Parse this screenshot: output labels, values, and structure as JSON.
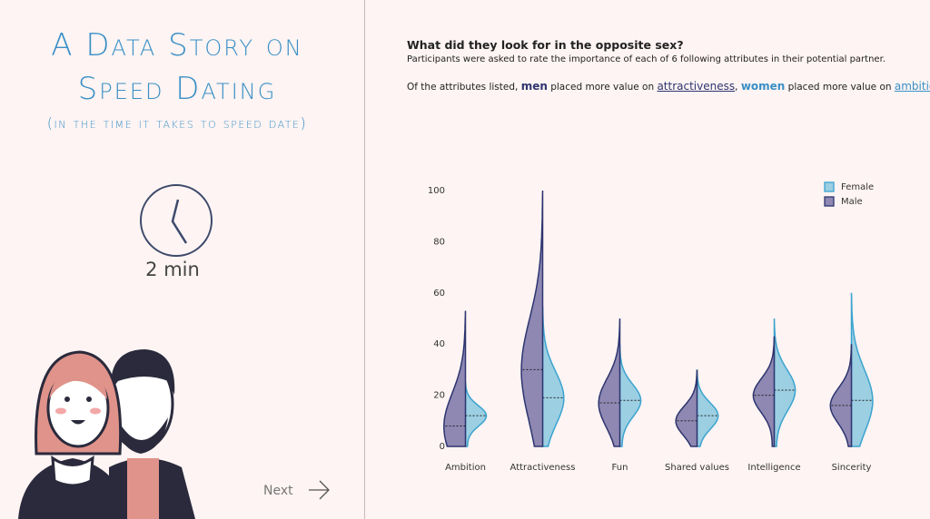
{
  "page": {
    "title_line1": "A Data Story on",
    "title_line2": "Speed Dating",
    "subtitle": "(in the time it takes to speed date)",
    "timer": "2 min",
    "next": "Next"
  },
  "chart_data": {
    "type": "violin",
    "title": "What did they look for in the opposite sex?",
    "subtitle": "Participants were asked to rate the importance of each of 6 following attributes in their potential partner.",
    "insight": [
      "Of the attributes listed, ",
      "men",
      " placed more value on ",
      "attractiveness",
      ", ",
      "women",
      " placed more value on ",
      "ambition",
      "."
    ],
    "categories": [
      "Ambition",
      "Attractiveness",
      "Fun",
      "Shared values",
      "Intelligence",
      "Sincerity"
    ],
    "series": [
      {
        "name": "Female",
        "color": "#9ccfe2",
        "edge": "#3ba3cf",
        "values": [
          12,
          19,
          18,
          12,
          22,
          18
        ],
        "max": [
          25,
          55,
          40,
          30,
          50,
          60
        ]
      },
      {
        "name": "Male",
        "color": "#8e88b2",
        "edge": "#2e3570",
        "values": [
          8,
          30,
          17,
          10,
          20,
          16
        ],
        "max": [
          53,
          100,
          50,
          30,
          43,
          40
        ]
      }
    ],
    "ylim": [
      0,
      100
    ],
    "yticks": [
      0,
      20,
      40,
      60,
      80,
      100
    ],
    "legend": "upper right"
  }
}
